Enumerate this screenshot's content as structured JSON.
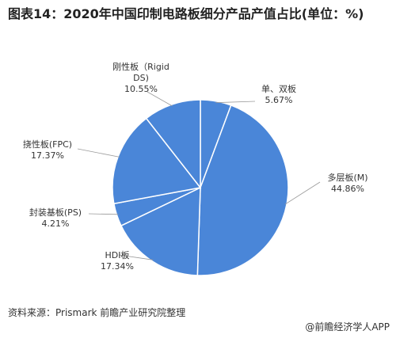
{
  "chart_data": {
    "type": "pie",
    "title": "图表14：2020年中国印制电路板细分产品产值占比(单位：%)",
    "slices": [
      {
        "name": "单、双板",
        "value": 5.67
      },
      {
        "name": "多层板(M)",
        "value": 44.86
      },
      {
        "name": "HDI板",
        "value": 17.34
      },
      {
        "name": "封装基板(PS)",
        "value": 4.21
      },
      {
        "name": "挠性板(FPC)",
        "value": 17.37
      },
      {
        "name": "刚性板（Rigid DS)",
        "value": 10.55
      }
    ],
    "label_values": [
      "5.67%",
      "44.86%",
      "17.34%",
      "4.21%",
      "17.37%",
      "10.55%"
    ],
    "colors": {
      "fill": "#4a86d8",
      "stroke": "#ffffff",
      "leader": "#999999"
    }
  },
  "source": "资料来源：Prismark 前瞻产业研究院整理",
  "brand": "@前瞻经济学人APP"
}
